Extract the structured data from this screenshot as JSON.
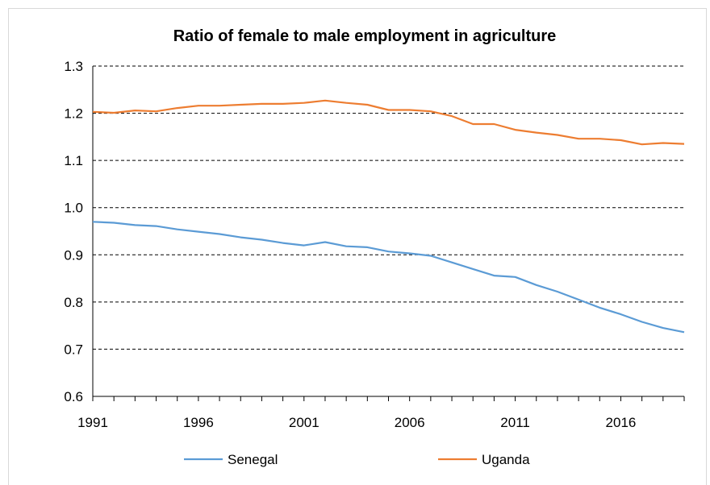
{
  "chart_data": {
    "type": "line",
    "title": "Ratio of female to male employment in agriculture",
    "xlabel": "",
    "ylabel": "",
    "xlim": [
      1991,
      2019
    ],
    "ylim": [
      0.6,
      1.3
    ],
    "y_ticks": [
      "0.6",
      "0.7",
      "0.8",
      "0.9",
      "1.0",
      "1.1",
      "1.2",
      "1.3"
    ],
    "x_ticks": [
      "1991",
      "1996",
      "2001",
      "2006",
      "2011",
      "2016"
    ],
    "grid": "horizontal dashed",
    "legend_position": "bottom",
    "x": [
      1991,
      1992,
      1993,
      1994,
      1995,
      1996,
      1997,
      1998,
      1999,
      2000,
      2001,
      2002,
      2003,
      2004,
      2005,
      2006,
      2007,
      2008,
      2009,
      2010,
      2011,
      2012,
      2013,
      2014,
      2015,
      2016,
      2017,
      2018,
      2019
    ],
    "series": [
      {
        "name": "Senegal",
        "color": "#5b9bd5",
        "values": [
          0.97,
          0.968,
          0.963,
          0.961,
          0.954,
          0.949,
          0.944,
          0.937,
          0.932,
          0.925,
          0.92,
          0.927,
          0.918,
          0.916,
          0.907,
          0.903,
          0.898,
          0.884,
          0.87,
          0.856,
          0.853,
          0.836,
          0.822,
          0.805,
          0.788,
          0.774,
          0.758,
          0.745,
          0.736
        ]
      },
      {
        "name": "Uganda",
        "color": "#ed7d31",
        "values": [
          1.203,
          1.201,
          1.206,
          1.204,
          1.211,
          1.216,
          1.216,
          1.218,
          1.22,
          1.22,
          1.222,
          1.227,
          1.222,
          1.218,
          1.207,
          1.207,
          1.204,
          1.194,
          1.177,
          1.177,
          1.165,
          1.159,
          1.154,
          1.146,
          1.146,
          1.143,
          1.134,
          1.137,
          1.135
        ]
      }
    ]
  }
}
